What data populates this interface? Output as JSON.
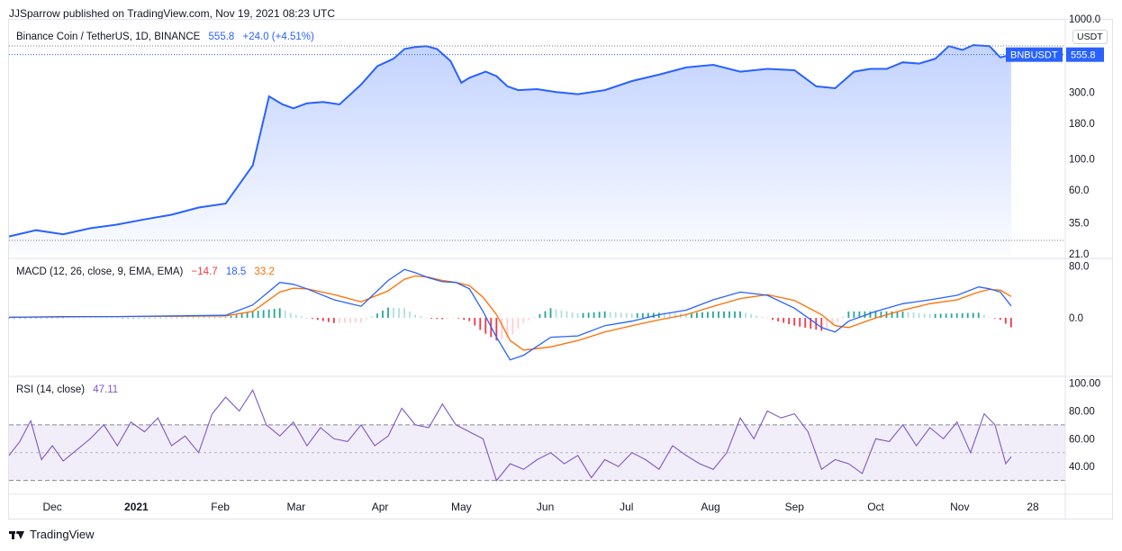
{
  "header": {
    "published_by": "JJSparrow published on TradingView.com, Nov 19, 2021 08:23 UTC"
  },
  "price_pane": {
    "symbol": "Binance Coin / TetherUS, 1D, BINANCE",
    "last": "555.8",
    "change": "+24.0 (+4.51%)",
    "currency_badge": "USDT",
    "ticker_label": "BNBUSDT",
    "ticker_value": "555.8"
  },
  "macd_pane": {
    "title": "MACD (12, 26, close, 9, EMA, EMA)",
    "hist": "−14.7",
    "macd": "18.5",
    "signal": "33.2"
  },
  "rsi_pane": {
    "title": "RSI (14, close)",
    "value": "47.11"
  },
  "footer": {
    "brand": "TradingView"
  },
  "colors": {
    "price_line": "#2962ff",
    "macd_line": "#2962ff",
    "signal_line": "#ff6d00",
    "hist_pos": "#26a69a",
    "hist_pos_light": "#b2dfdb",
    "hist_neg": "#f23645",
    "hist_neg_light": "#ffcdd2",
    "rsi_line": "#7e57c2"
  },
  "chart_data": [
    {
      "type": "area",
      "scale": "log",
      "y_ticks": [
        "1000.0",
        "300.0",
        "180.0",
        "100.0",
        "60.0",
        "35.0",
        "21.0"
      ],
      "y_tick_values": [
        1000,
        300,
        180,
        100,
        60,
        35,
        21
      ],
      "x_ticks": [
        "Dec",
        "2021",
        "Feb",
        "Mar",
        "Apr",
        "May",
        "Jun",
        "Jul",
        "Aug",
        "Sep",
        "Oct",
        "Nov",
        "28"
      ],
      "x_tick_days": [
        16,
        47,
        78,
        106,
        137,
        167,
        198,
        228,
        259,
        290,
        320,
        351,
        378
      ],
      "x": [
        0,
        10,
        20,
        30,
        40,
        50,
        60,
        70,
        80,
        90,
        96,
        101,
        105,
        110,
        116,
        122,
        130,
        136,
        142,
        146,
        150,
        154,
        158,
        163,
        167,
        170,
        173,
        176,
        180,
        184,
        188,
        195,
        202,
        210,
        220,
        230,
        240,
        250,
        260,
        270,
        280,
        290,
        298,
        305,
        312,
        318,
        324,
        330,
        336,
        342,
        347,
        352,
        356,
        362,
        366,
        370
      ],
      "values": [
        28,
        31,
        29,
        32,
        34,
        37,
        40,
        45,
        48,
        90,
        280,
        245,
        230,
        250,
        255,
        245,
        340,
        460,
        520,
        610,
        630,
        640,
        610,
        500,
        350,
        380,
        400,
        420,
        390,
        330,
        310,
        315,
        300,
        290,
        310,
        360,
        400,
        450,
        470,
        420,
        440,
        430,
        330,
        320,
        420,
        440,
        440,
        490,
        480,
        520,
        640,
        600,
        650,
        640,
        531,
        555.8
      ],
      "last": 555.8
    },
    {
      "type": "bar+line",
      "y_ticks": [
        "80.0",
        "0.0"
      ],
      "y_tick_values": [
        80,
        0
      ],
      "x": [
        0,
        20,
        40,
        60,
        80,
        90,
        100,
        105,
        110,
        120,
        130,
        140,
        146,
        150,
        155,
        160,
        165,
        170,
        175,
        180,
        185,
        190,
        200,
        210,
        220,
        230,
        240,
        250,
        260,
        270,
        280,
        290,
        300,
        305,
        310,
        320,
        330,
        340,
        350,
        358,
        362,
        366,
        370
      ],
      "series": [
        {
          "name": "MACD",
          "values": [
            1,
            2,
            2,
            3,
            4,
            20,
            55,
            52,
            45,
            28,
            18,
            58,
            75,
            70,
            62,
            56,
            55,
            45,
            10,
            -30,
            -65,
            -58,
            -30,
            -28,
            -12,
            -5,
            5,
            12,
            28,
            40,
            35,
            15,
            -15,
            -22,
            -5,
            10,
            22,
            28,
            35,
            48,
            45,
            40,
            18.5
          ]
        },
        {
          "name": "Signal",
          "values": [
            1,
            1.5,
            2,
            2.5,
            3,
            10,
            40,
            46,
            45,
            36,
            25,
            42,
            60,
            65,
            63,
            58,
            55,
            50,
            32,
            5,
            -35,
            -50,
            -45,
            -35,
            -22,
            -12,
            -3,
            5,
            18,
            30,
            36,
            27,
            5,
            -12,
            -15,
            0,
            12,
            22,
            28,
            40,
            44,
            43,
            33.2
          ]
        },
        {
          "name": "Histogram",
          "values": [
            0,
            0.5,
            0,
            0.5,
            1,
            10,
            15,
            6,
            0,
            -8,
            -7,
            16,
            15,
            5,
            -1,
            -2,
            0,
            -5,
            -22,
            -35,
            -30,
            -8,
            15,
            7,
            10,
            7,
            8,
            7,
            10,
            10,
            -1,
            -12,
            -20,
            -10,
            10,
            10,
            10,
            6,
            7,
            8,
            1,
            -3,
            -14.7
          ]
        }
      ],
      "last": {
        "hist": -14.7,
        "macd": 18.5,
        "signal": 33.2
      }
    },
    {
      "type": "line",
      "y_ticks": [
        "100.00",
        "80.00",
        "60.00",
        "40.00"
      ],
      "y_tick_values": [
        100,
        80,
        60,
        40
      ],
      "bands": [
        30,
        50,
        70
      ],
      "x": [
        0,
        4,
        8,
        12,
        16,
        20,
        25,
        30,
        35,
        40,
        45,
        50,
        55,
        60,
        65,
        70,
        75,
        80,
        85,
        90,
        95,
        100,
        105,
        110,
        115,
        120,
        125,
        130,
        135,
        140,
        145,
        150,
        155,
        160,
        165,
        170,
        175,
        180,
        185,
        190,
        195,
        200,
        205,
        210,
        215,
        220,
        225,
        230,
        235,
        240,
        245,
        250,
        255,
        260,
        265,
        270,
        275,
        280,
        285,
        290,
        295,
        300,
        305,
        310,
        315,
        320,
        325,
        330,
        335,
        340,
        345,
        350,
        355,
        360,
        364,
        368,
        370
      ],
      "values": [
        48,
        58,
        73,
        45,
        55,
        44,
        52,
        60,
        70,
        55,
        72,
        65,
        75,
        55,
        62,
        50,
        78,
        90,
        80,
        95,
        70,
        62,
        72,
        55,
        68,
        60,
        58,
        70,
        55,
        62,
        82,
        70,
        68,
        85,
        70,
        65,
        60,
        30,
        42,
        38,
        45,
        50,
        42,
        48,
        32,
        45,
        40,
        50,
        45,
        38,
        55,
        48,
        42,
        38,
        50,
        75,
        60,
        80,
        75,
        78,
        65,
        38,
        45,
        42,
        35,
        60,
        58,
        70,
        55,
        68,
        60,
        72,
        50,
        78,
        70,
        42,
        47.11
      ],
      "last": 47.11
    }
  ]
}
